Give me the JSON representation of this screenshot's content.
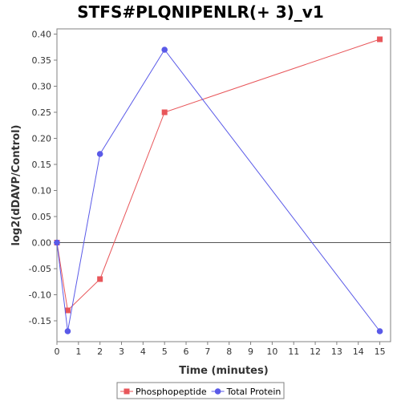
{
  "chart_data": {
    "type": "line",
    "title": "STFS#PLQNIPENLR(+ 3)_v1",
    "xlabel": "Time (minutes)",
    "ylabel": "log2(dDAVP/Control)",
    "xlim": [
      0,
      15.5
    ],
    "ylim": [
      -0.19,
      0.41
    ],
    "x_ticks": [
      0,
      1,
      2,
      3,
      4,
      5,
      6,
      7,
      8,
      9,
      10,
      11,
      12,
      13,
      14,
      15
    ],
    "y_ticks": [
      -0.15,
      -0.1,
      -0.05,
      0.0,
      0.05,
      0.1,
      0.15,
      0.2,
      0.25,
      0.3,
      0.35,
      0.4
    ],
    "y_tick_labels": [
      "-0.15",
      "-0.10",
      "-0.05",
      "0.00",
      "0.05",
      "0.10",
      "0.15",
      "0.20",
      "0.25",
      "0.30",
      "0.35",
      "0.40"
    ],
    "zero_line": true,
    "grid": false,
    "legend_position": "bottom",
    "series": [
      {
        "name": "Phosphopeptide",
        "color": "#e8565a",
        "marker": "square",
        "x": [
          0,
          0.5,
          2,
          5,
          15
        ],
        "y": [
          0.0,
          -0.13,
          -0.07,
          0.25,
          0.39
        ]
      },
      {
        "name": "Total Protein",
        "color": "#5a5ae8",
        "marker": "circle",
        "x": [
          0,
          0.5,
          2,
          5,
          15
        ],
        "y": [
          0.0,
          -0.17,
          0.17,
          0.37,
          -0.17
        ]
      }
    ]
  }
}
